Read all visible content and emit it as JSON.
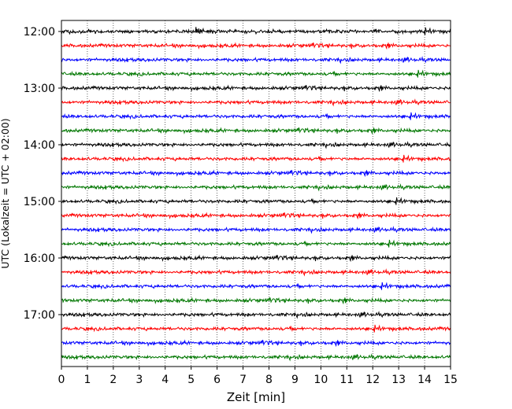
{
  "chart_data": {
    "type": "line",
    "title": "",
    "xlabel": "Zeit  [min]",
    "ylabel": "UTC (Lokalzeit = UTC + 02:00)",
    "xlim": [
      0,
      15
    ],
    "x_ticks": [
      0,
      1,
      2,
      3,
      4,
      5,
      6,
      7,
      8,
      9,
      10,
      11,
      12,
      13,
      14,
      15
    ],
    "x_tick_labels": [
      "0",
      "1",
      "2",
      "3",
      "4",
      "5",
      "6",
      "7",
      "8",
      "9",
      "10",
      "11",
      "12",
      "13",
      "14",
      "15"
    ],
    "y_tick_labels": [
      "12:00",
      "13:00",
      "14:00",
      "15:00",
      "16:00",
      "17:00"
    ],
    "grid": "vertical dotted at each minute",
    "legend": "none",
    "color_cycle": [
      "#000000",
      "#ff0000",
      "#0000ff",
      "#007700"
    ],
    "traces": [
      {
        "start": "12:00"
      },
      {
        "start": "12:15"
      },
      {
        "start": "12:30"
      },
      {
        "start": "12:45"
      },
      {
        "start": "13:00"
      },
      {
        "start": "13:15"
      },
      {
        "start": "13:30"
      },
      {
        "start": "13:45"
      },
      {
        "start": "14:00"
      },
      {
        "start": "14:15"
      },
      {
        "start": "14:30"
      },
      {
        "start": "14:45"
      },
      {
        "start": "15:00"
      },
      {
        "start": "15:15"
      },
      {
        "start": "15:30"
      },
      {
        "start": "15:45"
      },
      {
        "start": "16:00"
      },
      {
        "start": "16:15"
      },
      {
        "start": "16:30"
      },
      {
        "start": "16:45"
      },
      {
        "start": "17:00"
      },
      {
        "start": "17:15"
      },
      {
        "start": "17:30"
      },
      {
        "start": "17:45"
      }
    ]
  }
}
